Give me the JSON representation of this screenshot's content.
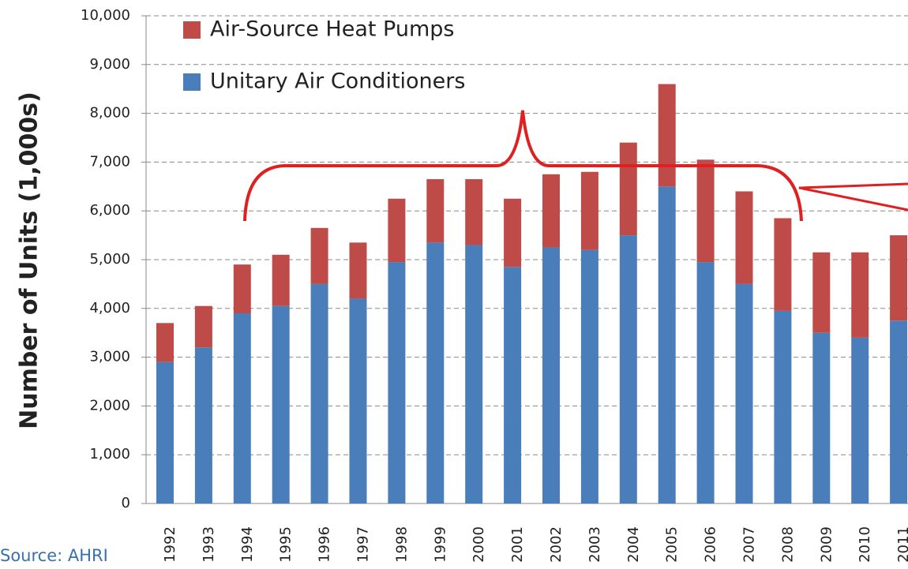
{
  "chart_data": {
    "type": "bar",
    "stacked": true,
    "y_label": "Number of Units (1,000s)",
    "source": "Source: AHRI",
    "categories": [
      "1992",
      "1993",
      "1994",
      "1995",
      "1996",
      "1997",
      "1998",
      "1999",
      "2000",
      "2001",
      "2002",
      "2003",
      "2004",
      "2005",
      "2006",
      "2007",
      "2008",
      "2009",
      "2010",
      "2011"
    ],
    "series": [
      {
        "name": "Unitary Air Conditioners",
        "color": "#4a7ebb",
        "values": [
          2900,
          3200,
          3900,
          4050,
          4500,
          4200,
          4950,
          5350,
          5300,
          4850,
          5250,
          5200,
          5500,
          6500,
          4950,
          4500,
          3950,
          3500,
          3400,
          3750
        ]
      },
      {
        "name": "Air-Source Heat Pumps",
        "color": "#be4b48",
        "values": [
          800,
          850,
          1000,
          1050,
          1150,
          1150,
          1300,
          1300,
          1350,
          1400,
          1500,
          1600,
          1900,
          2100,
          2100,
          1900,
          1900,
          1650,
          1750,
          1750
        ]
      }
    ],
    "ylim": [
      0,
      10000
    ],
    "yticks": [
      0,
      {
        "value": 1000,
        "label": "1,000"
      },
      {
        "value": 2000,
        "label": "2,000"
      },
      {
        "value": 3000,
        "label": "3,000"
      },
      {
        "value": 4000,
        "label": "4,000"
      },
      {
        "value": 5000,
        "label": "5,000"
      },
      {
        "value": 6000,
        "label": "6,000"
      },
      {
        "value": 7000,
        "label": "7,000"
      },
      {
        "value": 8000,
        "label": "8,000"
      },
      {
        "value": 9000,
        "label": "9,000"
      },
      {
        "value": 10000,
        "label": "10,000"
      }
    ],
    "grid": true
  }
}
